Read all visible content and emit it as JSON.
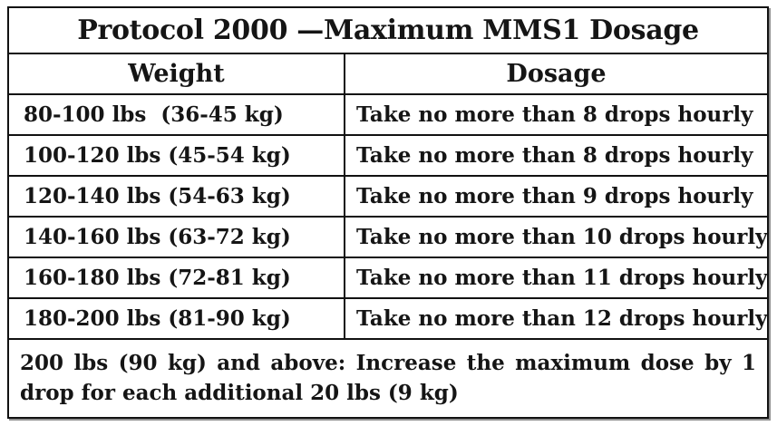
{
  "table": {
    "title": "Protocol 2000 —Maximum MMS1 Dosage",
    "columns": {
      "weight": "Weight",
      "dosage": "Dosage"
    },
    "rows": [
      {
        "weight": "80-100 lbs  (36-45 kg)",
        "dosage": "Take no more than 8 drops hourly"
      },
      {
        "weight": "100-120 lbs (45-54 kg)",
        "dosage": "Take no more than 8 drops hourly"
      },
      {
        "weight": "120-140 lbs (54-63 kg)",
        "dosage": "Take no more than 9 drops hourly"
      },
      {
        "weight": "140-160 lbs (63-72 kg)",
        "dosage": "Take no more than 10 drops hourly"
      },
      {
        "weight": "160-180 lbs (72-81 kg)",
        "dosage": "Take no more than 11 drops hourly"
      },
      {
        "weight": "180-200 lbs (81-90 kg)",
        "dosage": "Take no more than 12 drops hourly"
      }
    ],
    "footer": {
      "line1": "200 lbs (90 kg) and above: Increase the maximum dose by 1",
      "line2": "drop for each additional 20 lbs (9 kg)"
    },
    "colors": {
      "border": "#111111",
      "text": "#151515",
      "shadow": "#8f8f8f",
      "background": "#ffffff"
    }
  }
}
